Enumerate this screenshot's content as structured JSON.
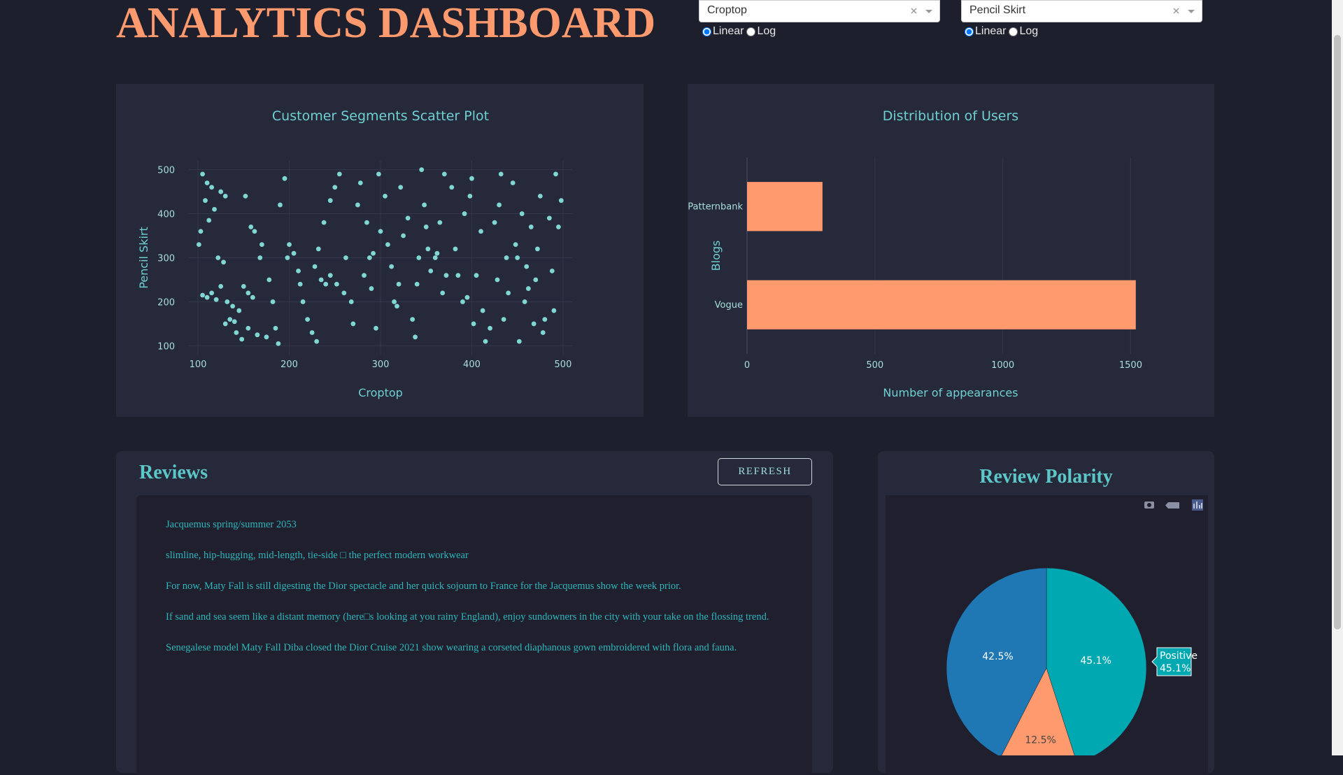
{
  "header": {
    "title": "ANALYTICS DASHBOARD"
  },
  "controls": [
    {
      "dropdown": "Croptop",
      "scale_options": [
        "Linear",
        "Log"
      ],
      "selected": "Linear"
    },
    {
      "dropdown": "Pencil Skirt",
      "scale_options": [
        "Linear",
        "Log"
      ],
      "selected": "Linear"
    }
  ],
  "chart_data": [
    {
      "type": "scatter",
      "title": "Customer Segments Scatter Plot",
      "x_label": "Croptop",
      "y_label": "Pencil Skirt",
      "color": "#7fd6d2",
      "grid": true,
      "xlim": [
        90,
        510
      ],
      "ylim": [
        80,
        520
      ],
      "xticks": [
        100,
        200,
        300,
        400,
        500
      ],
      "yticks": [
        100,
        200,
        300,
        400,
        500
      ],
      "x": [
        105,
        110,
        115,
        108,
        112,
        103,
        101,
        118,
        125,
        130,
        122,
        128,
        105,
        110,
        115,
        120,
        125,
        132,
        135,
        140,
        130,
        138,
        145,
        150,
        142,
        148,
        155,
        160,
        152,
        158,
        162,
        170,
        168,
        155,
        165,
        175,
        178,
        182,
        185,
        188,
        190,
        195,
        198,
        200,
        205,
        210,
        212,
        215,
        220,
        225,
        230,
        228,
        232,
        235,
        240,
        245,
        238,
        245,
        250,
        255,
        252,
        260,
        262,
        268,
        270,
        275,
        278,
        282,
        285,
        288,
        290,
        292,
        295,
        298,
        300,
        305,
        308,
        312,
        315,
        318,
        320,
        322,
        325,
        330,
        335,
        338,
        340,
        342,
        345,
        348,
        350,
        352,
        355,
        360,
        362,
        365,
        368,
        370,
        372,
        378,
        382,
        385,
        390,
        392,
        395,
        398,
        400,
        402,
        405,
        410,
        412,
        415,
        420,
        425,
        428,
        430,
        432,
        435,
        438,
        440,
        445,
        448,
        450,
        452,
        455,
        458,
        460,
        462,
        465,
        468,
        470,
        472,
        475,
        478,
        480,
        485,
        488,
        490,
        492,
        495,
        498
      ],
      "y": [
        490,
        470,
        460,
        430,
        385,
        360,
        330,
        410,
        450,
        440,
        300,
        290,
        215,
        210,
        220,
        205,
        235,
        200,
        160,
        155,
        150,
        190,
        180,
        235,
        130,
        115,
        220,
        210,
        440,
        370,
        360,
        330,
        300,
        140,
        125,
        120,
        250,
        200,
        140,
        105,
        420,
        480,
        300,
        330,
        310,
        270,
        240,
        200,
        160,
        130,
        110,
        280,
        320,
        250,
        240,
        260,
        380,
        430,
        460,
        490,
        240,
        220,
        300,
        200,
        150,
        420,
        470,
        260,
        380,
        300,
        230,
        310,
        140,
        490,
        360,
        440,
        330,
        280,
        200,
        190,
        240,
        460,
        350,
        390,
        160,
        120,
        240,
        300,
        500,
        420,
        370,
        320,
        270,
        300,
        310,
        380,
        220,
        490,
        260,
        460,
        320,
        260,
        200,
        400,
        210,
        440,
        480,
        150,
        260,
        360,
        180,
        110,
        140,
        380,
        250,
        420,
        490,
        160,
        300,
        220,
        470,
        330,
        300,
        110,
        400,
        200,
        280,
        230,
        370,
        150,
        250,
        320,
        440,
        130,
        160,
        390,
        270,
        180,
        490,
        370,
        430
      ]
    },
    {
      "type": "hbar",
      "title": "Distribution of Users",
      "x_label": "Number of appearances",
      "y_label": "Blogs",
      "categories": [
        "Vogue",
        "Patternbank"
      ],
      "values": [
        1520,
        295
      ],
      "color": "#ff9a6e",
      "xlim": [
        0,
        1600
      ],
      "xticks": [
        0,
        500,
        1000,
        1500
      ],
      "grid": true
    },
    {
      "type": "pie",
      "title": "Review Polarity",
      "categories": [
        "Positive",
        null,
        null
      ],
      "values": [
        45.1,
        12.5,
        42.5
      ],
      "value_labels": [
        "45.1%",
        "12.5%",
        "42.5%"
      ],
      "colors": [
        "#00a9b1",
        "#ff9a6e",
        "#1f77b4"
      ]
    }
  ],
  "reviews": {
    "title": "Reviews",
    "button": "REFRESH",
    "items": [
      "Jacquemus spring/summer 2053",
      "slimline, hip-hugging, mid-length, tie-side □ the perfect modern workwear",
      "For now, Maty Fall is still digesting the Dior spectacle and her quick sojourn to France for the Jacquemus show the week prior.",
      "If sand and sea seem like a distant memory (here□s looking at you rainy England), enjoy sundowners in the city with your take on the flossing trend.",
      "Senegalese model Maty Fall Diba closed the Dior Cruise 2021 show wearing a corseted diaphanous gown embroidered with flora and fauna."
    ]
  }
}
